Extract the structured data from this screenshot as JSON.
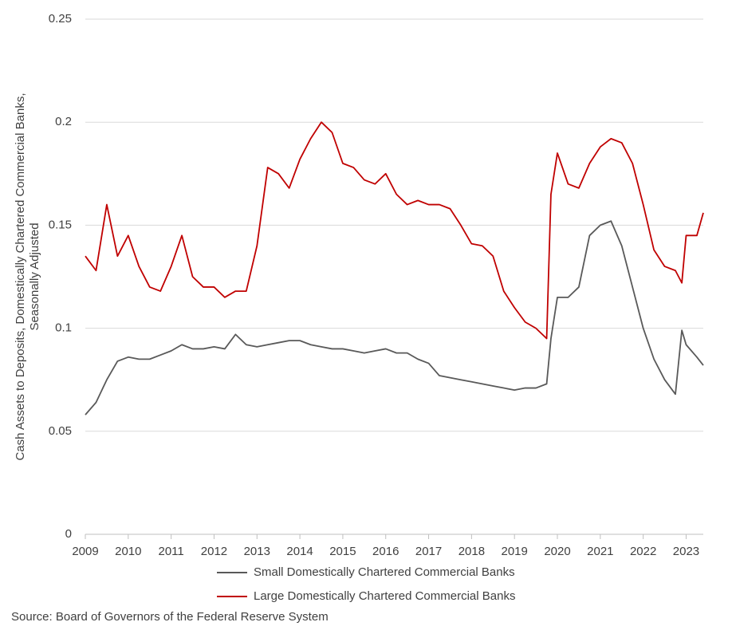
{
  "chart_data": {
    "type": "line",
    "y_label": [
      "Cash Assets to Deposits, Domestically Chartered Commercial Banks,",
      "Seasonally Adjusted"
    ],
    "source": "Source: Board of Governors of the Federal Reserve System",
    "x": [
      2009,
      2009.25,
      2009.5,
      2009.75,
      2010,
      2010.25,
      2010.5,
      2010.75,
      2011,
      2011.25,
      2011.5,
      2011.75,
      2012,
      2012.25,
      2012.5,
      2012.75,
      2013,
      2013.25,
      2013.5,
      2013.75,
      2014,
      2014.25,
      2014.5,
      2014.75,
      2015,
      2015.25,
      2015.5,
      2015.75,
      2016,
      2016.25,
      2016.5,
      2016.75,
      2017,
      2017.25,
      2017.5,
      2017.75,
      2018,
      2018.25,
      2018.5,
      2018.75,
      2019,
      2019.25,
      2019.5,
      2019.75,
      2019.85,
      2020,
      2020.25,
      2020.5,
      2020.75,
      2021,
      2021.25,
      2021.5,
      2021.75,
      2022,
      2022.25,
      2022.5,
      2022.75,
      2022.9,
      2023,
      2023.25,
      2023.4
    ],
    "series": [
      {
        "name": "Small Domestically Chartered Commercial Banks",
        "color": "#595959",
        "values": [
          0.058,
          0.064,
          0.075,
          0.084,
          0.086,
          0.085,
          0.085,
          0.087,
          0.089,
          0.092,
          0.09,
          0.09,
          0.091,
          0.09,
          0.097,
          0.092,
          0.091,
          0.092,
          0.093,
          0.094,
          0.094,
          0.092,
          0.091,
          0.09,
          0.09,
          0.089,
          0.088,
          0.089,
          0.09,
          0.088,
          0.088,
          0.085,
          0.083,
          0.077,
          0.076,
          0.075,
          0.074,
          0.073,
          0.072,
          0.071,
          0.07,
          0.071,
          0.071,
          0.073,
          0.095,
          0.115,
          0.115,
          0.12,
          0.145,
          0.15,
          0.152,
          0.14,
          0.12,
          0.1,
          0.085,
          0.075,
          0.068,
          0.099,
          0.092,
          0.086,
          0.082
        ]
      },
      {
        "name": "Large Domestically Chartered Commercial Banks",
        "color": "#c00000",
        "values": [
          0.135,
          0.128,
          0.16,
          0.135,
          0.145,
          0.13,
          0.12,
          0.118,
          0.13,
          0.145,
          0.125,
          0.12,
          0.12,
          0.115,
          0.118,
          0.118,
          0.14,
          0.178,
          0.175,
          0.168,
          0.182,
          0.192,
          0.2,
          0.195,
          0.18,
          0.178,
          0.172,
          0.17,
          0.175,
          0.165,
          0.16,
          0.162,
          0.16,
          0.16,
          0.158,
          0.15,
          0.141,
          0.14,
          0.135,
          0.118,
          0.11,
          0.103,
          0.1,
          0.095,
          0.165,
          0.185,
          0.17,
          0.168,
          0.18,
          0.188,
          0.192,
          0.19,
          0.18,
          0.16,
          0.138,
          0.13,
          0.128,
          0.122,
          0.145,
          0.145,
          0.156
        ]
      }
    ],
    "xlim": [
      2009,
      2023.4
    ],
    "xticks": [
      2009,
      2010,
      2011,
      2012,
      2013,
      2014,
      2015,
      2016,
      2017,
      2018,
      2019,
      2020,
      2021,
      2022,
      2023
    ],
    "ylim": [
      0,
      0.25
    ],
    "yticks": [
      0,
      0.05,
      0.1,
      0.15,
      0.2,
      0.25
    ],
    "grid": true,
    "legend": "bottom"
  }
}
